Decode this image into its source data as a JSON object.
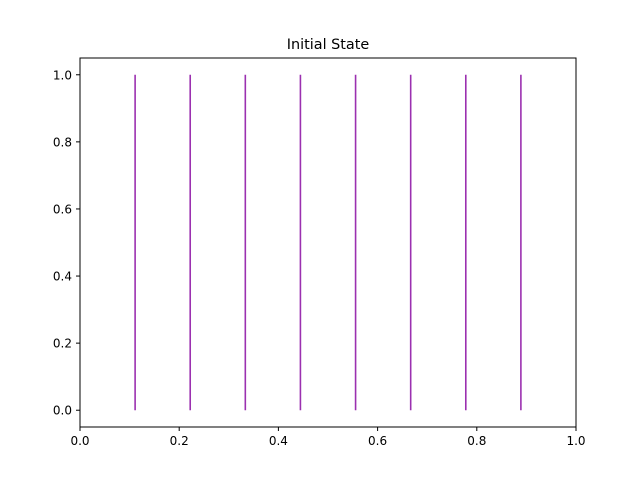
{
  "chart_data": {
    "type": "line",
    "title": "Initial State",
    "xlabel": "",
    "ylabel": "",
    "xlim": [
      0,
      1
    ],
    "ylim": [
      -0.05,
      1.05
    ],
    "xticks": [
      0.0,
      0.2,
      0.4,
      0.6,
      0.8,
      1.0
    ],
    "xtick_labels": [
      "0.0",
      "0.2",
      "0.4",
      "0.6",
      "0.8",
      "1.0"
    ],
    "yticks": [
      0.0,
      0.2,
      0.4,
      0.6,
      0.8,
      1.0
    ],
    "ytick_labels": [
      "0.0",
      "0.2",
      "0.4",
      "0.6",
      "0.8",
      "1.0"
    ],
    "grid": false,
    "legend": "none",
    "line_color": "#9b30b0",
    "series": [
      {
        "x": [
          0.1111,
          0.1111
        ],
        "y": [
          0,
          1
        ]
      },
      {
        "x": [
          0.2222,
          0.2222
        ],
        "y": [
          0,
          1
        ]
      },
      {
        "x": [
          0.3333,
          0.3333
        ],
        "y": [
          0,
          1
        ]
      },
      {
        "x": [
          0.4444,
          0.4444
        ],
        "y": [
          0,
          1
        ]
      },
      {
        "x": [
          0.5556,
          0.5556
        ],
        "y": [
          0,
          1
        ]
      },
      {
        "x": [
          0.6667,
          0.6667
        ],
        "y": [
          0,
          1
        ]
      },
      {
        "x": [
          0.7778,
          0.7778
        ],
        "y": [
          0,
          1
        ]
      },
      {
        "x": [
          0.8889,
          0.8889
        ],
        "y": [
          0,
          1
        ]
      }
    ]
  }
}
